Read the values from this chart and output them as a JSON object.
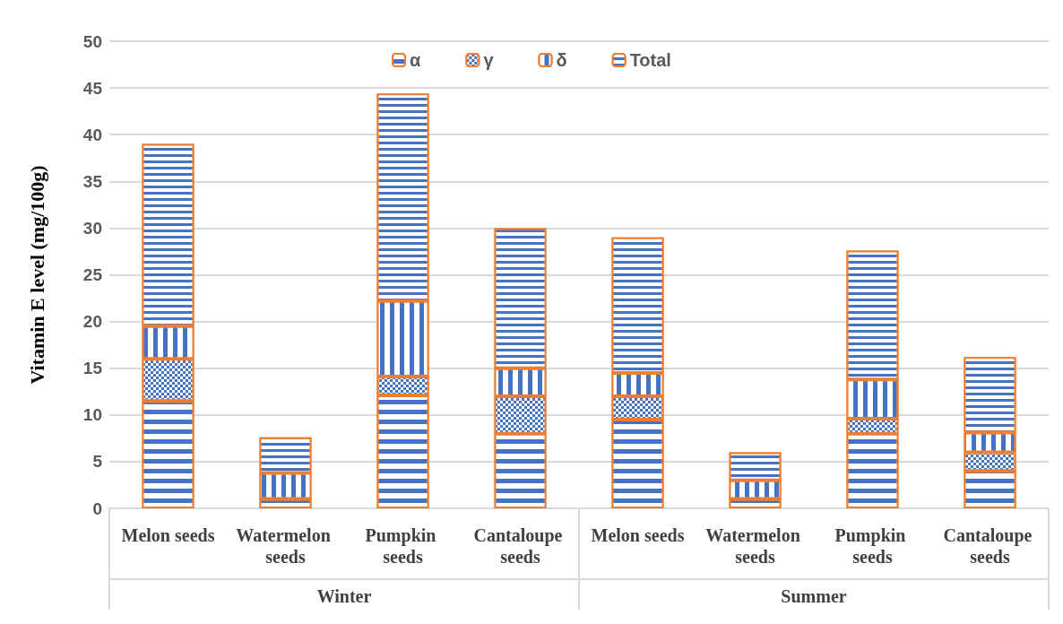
{
  "chart_data": {
    "type": "bar",
    "stacked": true,
    "ylabel": "Vitamin E level (mg/100g)",
    "categories": [
      "Melon seeds",
      "Watermelon seeds",
      "Pumpkin seeds",
      "Cantaloupe seeds",
      "Melon seeds",
      "Watermelon seeds",
      "Pumpkin seeds",
      "Cantaloupe seeds"
    ],
    "series": [
      {
        "name": "α",
        "color": "#4472c4",
        "values": [
          11.5,
          1.0,
          12.1,
          8.0,
          9.5,
          1.0,
          8.0,
          4.0
        ]
      },
      {
        "name": "γ",
        "color": "#4472c4",
        "values": [
          4.5,
          0,
          2.0,
          4.0,
          2.5,
          0,
          1.6,
          2.0
        ]
      },
      {
        "name": "δ",
        "color": "#4472c4",
        "values": [
          3.5,
          2.8,
          8.1,
          3.0,
          2.5,
          2.0,
          4.2,
          2.1
        ]
      },
      {
        "name": "Total",
        "color": "#4472c4",
        "values": [
          19.5,
          3.8,
          22.2,
          15.0,
          14.5,
          3.0,
          13.8,
          8.1
        ]
      }
    ],
    "annotations": [
      "Winter",
      "Summer"
    ],
    "ylim": [
      0,
      50
    ],
    "yticks": [
      0,
      5,
      10,
      15,
      20,
      25,
      30,
      35,
      40,
      45,
      50
    ],
    "grid": "y",
    "legend": "top"
  }
}
